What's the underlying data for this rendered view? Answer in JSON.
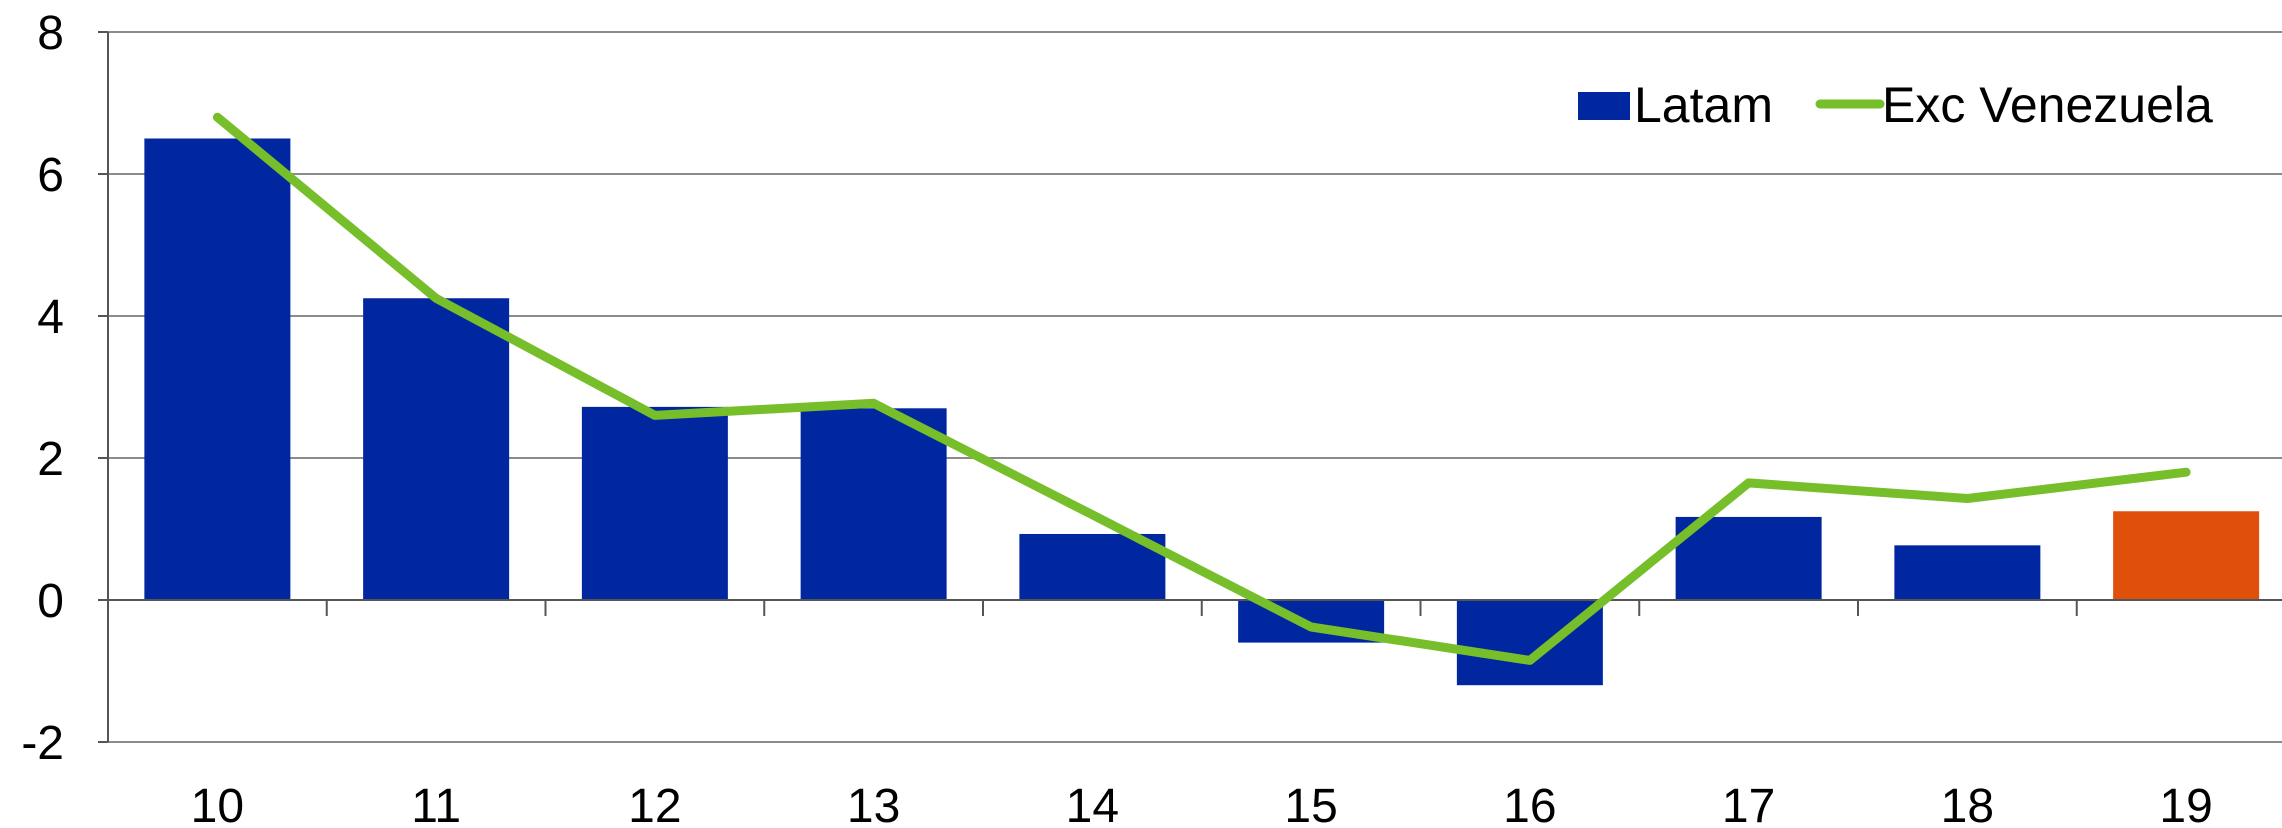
{
  "chart_data": {
    "type": "bar",
    "categories": [
      "10",
      "11",
      "12",
      "13",
      "14",
      "15",
      "16",
      "17",
      "18",
      "19"
    ],
    "series": [
      {
        "name": "Latam",
        "kind": "bar",
        "color": "#0027A0",
        "highlight_color": "#E0500A",
        "highlight_index": 9,
        "values": [
          6.5,
          4.25,
          2.72,
          2.7,
          0.93,
          -0.6,
          -1.2,
          1.17,
          0.77,
          1.25
        ]
      },
      {
        "name": "Exc Venezuela",
        "kind": "line",
        "color": "#76BE2A",
        "values": [
          6.8,
          4.25,
          2.6,
          2.77,
          1.2,
          -0.38,
          -0.85,
          1.65,
          1.43,
          1.8
        ]
      }
    ],
    "y_ticks": [
      "8",
      "6",
      "4",
      "2",
      "0",
      "-2"
    ],
    "ylim": [
      -2,
      8
    ],
    "grid": true,
    "legend_position": "top-right"
  }
}
